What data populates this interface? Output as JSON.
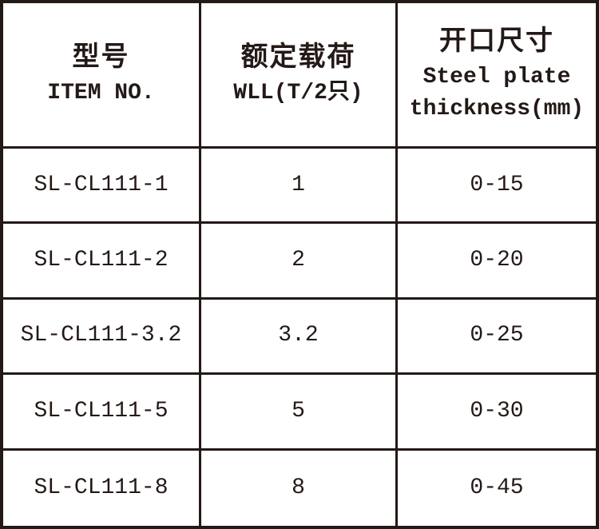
{
  "colors": {
    "ink": "#231916",
    "background": "#ffffff"
  },
  "chart_data": {
    "type": "table",
    "title": "",
    "grid": "on",
    "header": {
      "col1": {
        "cn": "型号",
        "en": "ITEM NO."
      },
      "col2": {
        "cn": "额定载荷",
        "en": "WLL(T/2只)"
      },
      "col3": {
        "cn": "开口尺寸",
        "en_line1": "Steel plate",
        "en_line2": "thickness(mm)"
      }
    },
    "columns_semantic": [
      "item_no",
      "working_load_limit_t_per_2pcs",
      "steel_plate_thickness_mm"
    ],
    "rows": [
      {
        "item_no": "SL-CL111-1",
        "wll": "1",
        "opening_mm": "0-15"
      },
      {
        "item_no": "SL-CL111-2",
        "wll": "2",
        "opening_mm": "0-20"
      },
      {
        "item_no": "SL-CL111-3.2",
        "wll": "3.2",
        "opening_mm": "0-25"
      },
      {
        "item_no": "SL-CL111-5",
        "wll": "5",
        "opening_mm": "0-30"
      },
      {
        "item_no": "SL-CL111-8",
        "wll": "8",
        "opening_mm": "0-45"
      }
    ]
  }
}
